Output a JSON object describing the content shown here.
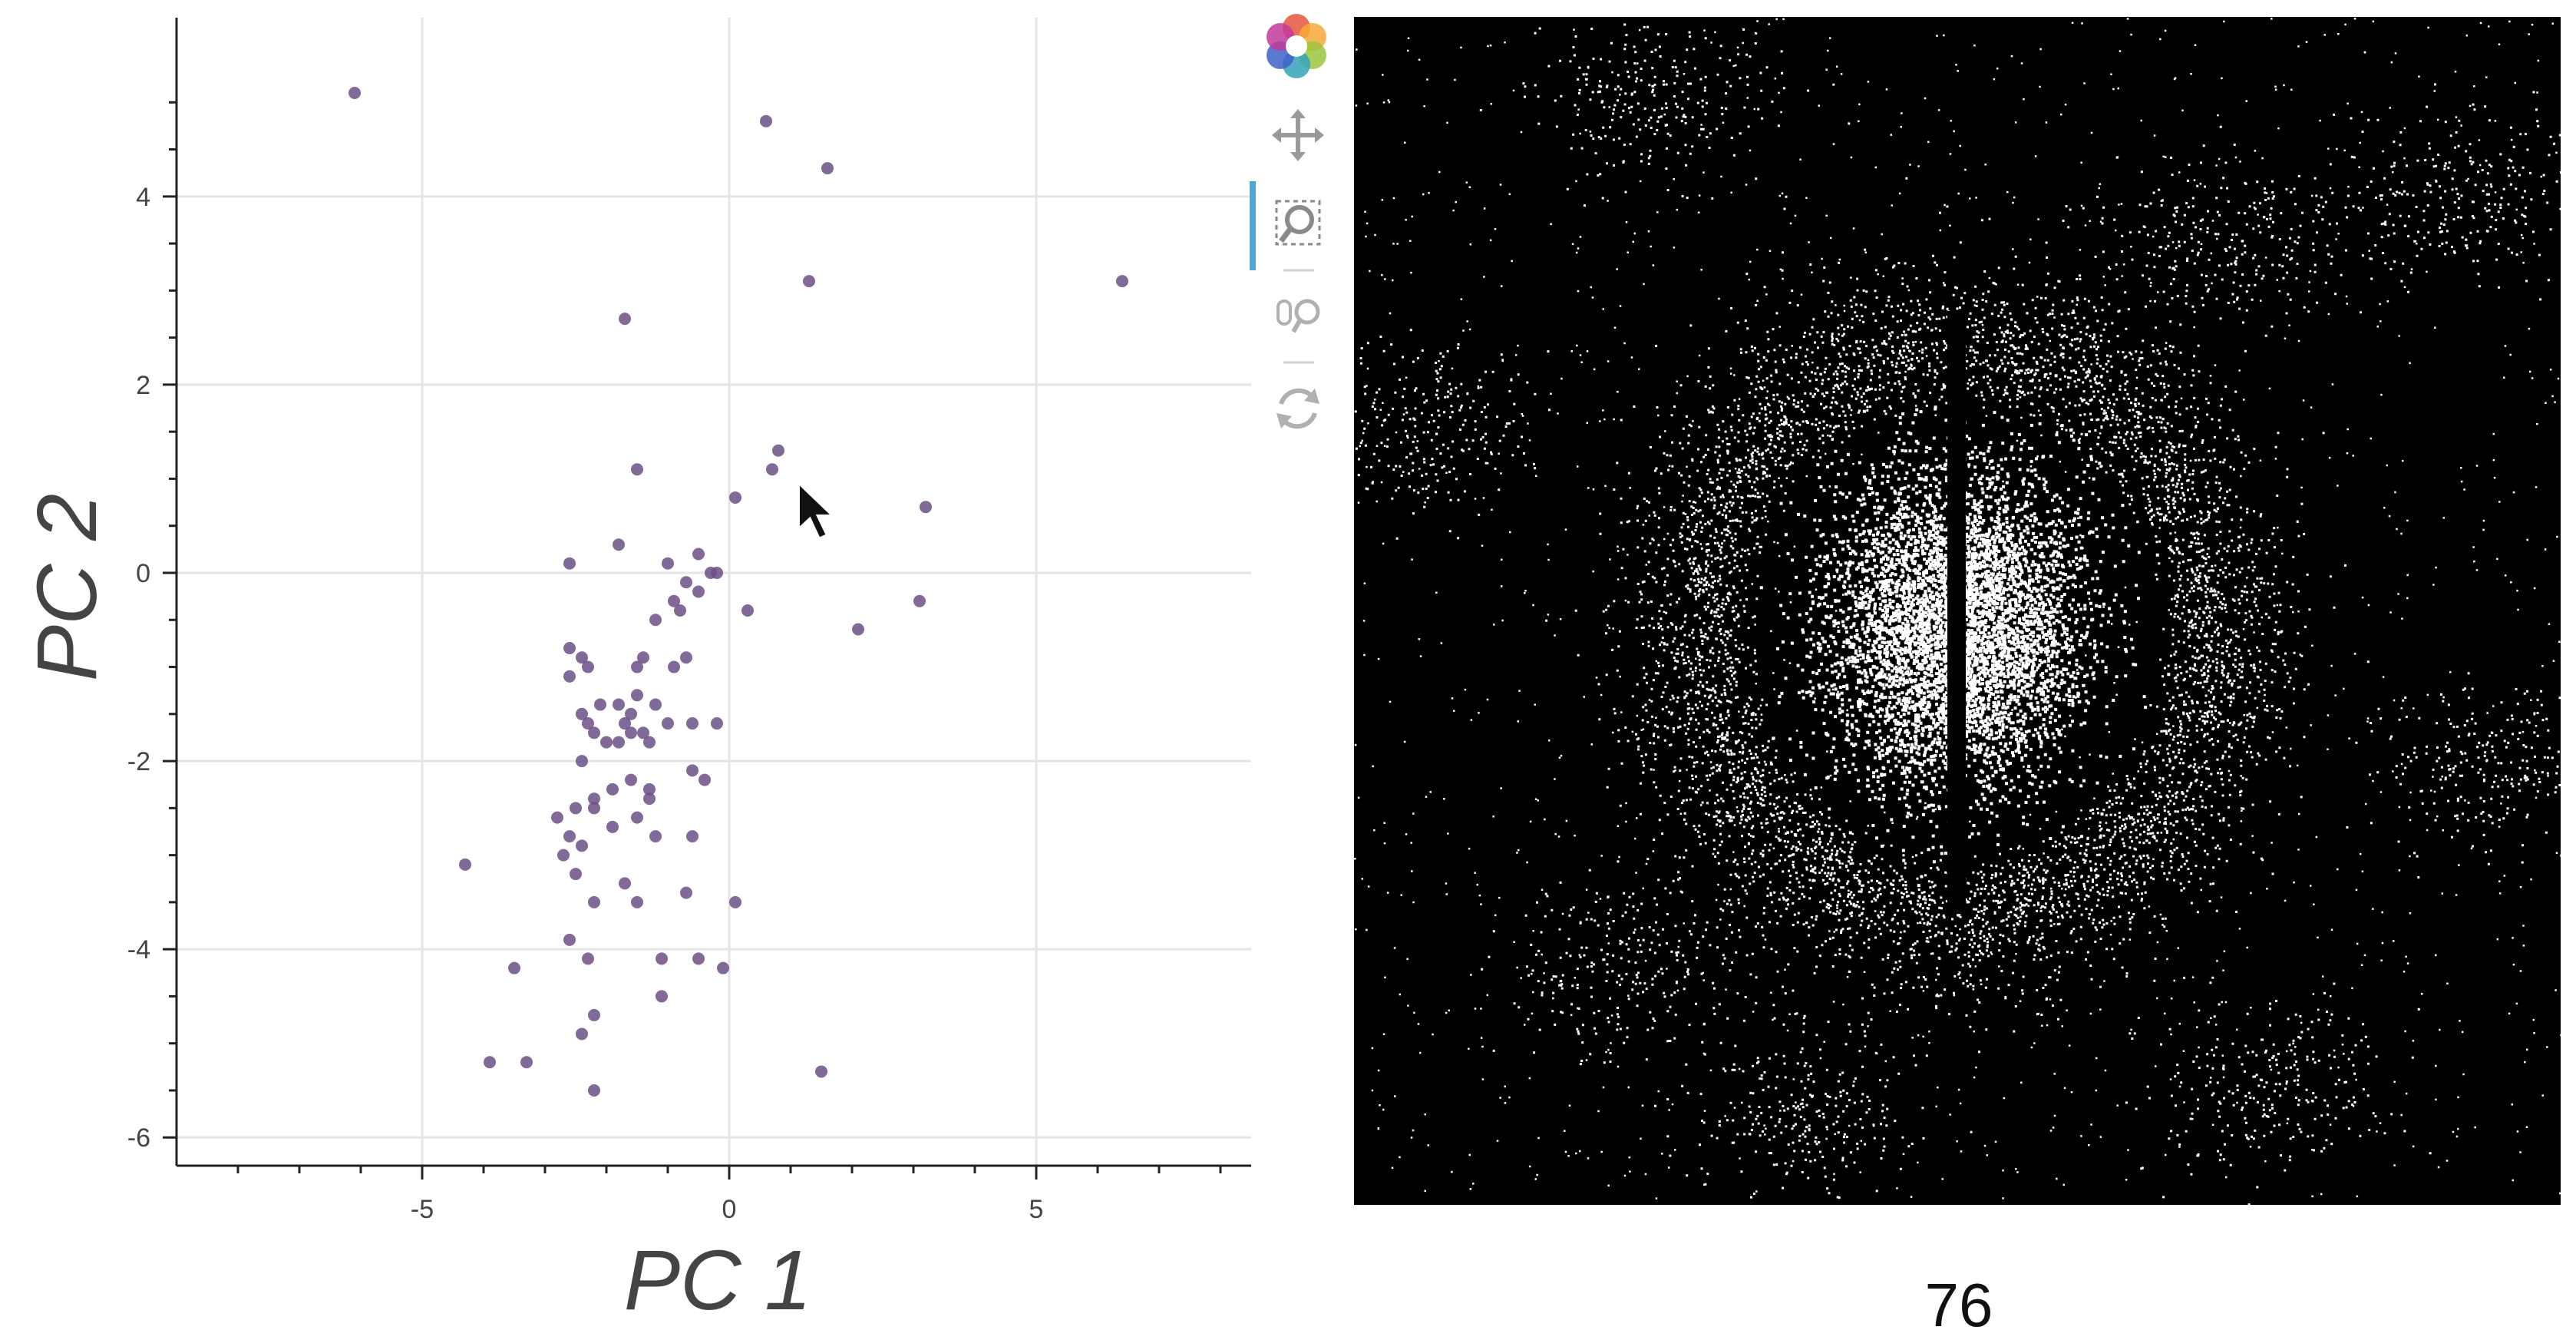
{
  "chart_data": {
    "type": "scatter",
    "xlabel": "PC 1",
    "ylabel": "PC 2",
    "xlim": [
      -9,
      8.5
    ],
    "ylim": [
      -6.3,
      5.9
    ],
    "xticks": [
      -5,
      0,
      5
    ],
    "yticks": [
      4,
      2,
      0,
      -2,
      -4,
      -6
    ],
    "grid": true,
    "marker_color": "#6b4f86",
    "series": [
      {
        "x": [
          -6.1,
          0.6,
          1.6,
          1.3,
          6.4,
          -1.7,
          0.8,
          0.7,
          -1.5,
          0.1,
          3.2,
          -2.6,
          -1.8,
          -1.0,
          -0.7,
          -0.5,
          -0.3,
          -0.2,
          -1.2,
          -0.8,
          -0.5,
          0.3,
          2.1,
          3.1,
          -2.6,
          -2.4,
          -2.3,
          -1.5,
          -1.4,
          -0.7,
          -2.6,
          -2.4,
          -2.1,
          -1.8,
          -1.5,
          -1.2,
          -1.7,
          -1.4,
          -1.0,
          -0.6,
          -0.2,
          -2.2,
          -1.8,
          -1.6,
          -1.3,
          -0.6,
          -0.4,
          -2.5,
          -2.2,
          -1.9,
          -1.6,
          -1.3,
          -2.8,
          -2.6,
          -2.4,
          -1.5,
          -1.2,
          -0.6,
          -2.7,
          -2.5,
          -1.7,
          -2.2,
          -1.5,
          -0.7,
          0.1,
          -4.3,
          -2.6,
          -3.5,
          -1.1,
          -0.5,
          -0.1,
          -2.3,
          -1.1,
          -2.2,
          -2.4,
          -3.9,
          -3.3,
          1.5,
          -2.2,
          -2.4,
          -2.0,
          -2.2,
          -1.9,
          -1.3,
          -2.3,
          -0.9,
          -1.6,
          -0.9
        ],
        "y": [
          5.1,
          4.8,
          4.3,
          3.1,
          3.1,
          2.7,
          1.3,
          1.1,
          1.1,
          0.8,
          0.7,
          0.1,
          0.3,
          0.1,
          -0.1,
          0.2,
          0.0,
          0.0,
          -0.5,
          -0.4,
          -0.2,
          -0.4,
          -0.6,
          -0.3,
          -0.8,
          -0.9,
          -1.0,
          -1.0,
          -0.9,
          -0.9,
          -1.1,
          -1.5,
          -1.4,
          -1.4,
          -1.3,
          -1.4,
          -1.6,
          -1.7,
          -1.6,
          -1.6,
          -1.6,
          -1.7,
          -1.8,
          -1.7,
          -1.8,
          -2.1,
          -2.2,
          -2.5,
          -2.4,
          -2.3,
          -2.2,
          -2.3,
          -2.6,
          -2.8,
          -2.9,
          -2.6,
          -2.8,
          -2.8,
          -3.0,
          -3.2,
          -3.3,
          -3.5,
          -3.5,
          -3.4,
          -3.5,
          -3.1,
          -3.9,
          -4.2,
          -4.1,
          -4.1,
          -4.2,
          -4.1,
          -4.5,
          -4.7,
          -4.9,
          -5.2,
          -5.2,
          -5.3,
          -5.5,
          -2.0,
          -1.8,
          -2.5,
          -2.7,
          -2.4,
          -1.6,
          -1.0,
          -1.5,
          -0.3
        ]
      }
    ]
  },
  "toolbar": {
    "tools": [
      "bokeh-logo",
      "pan-tool",
      "box-zoom-tool",
      "wheel-zoom-tool",
      "reset-tool"
    ],
    "active_tool": "box-zoom-tool",
    "accent": "#4ea6d8"
  },
  "image_panel": {
    "frame_label": "76"
  }
}
